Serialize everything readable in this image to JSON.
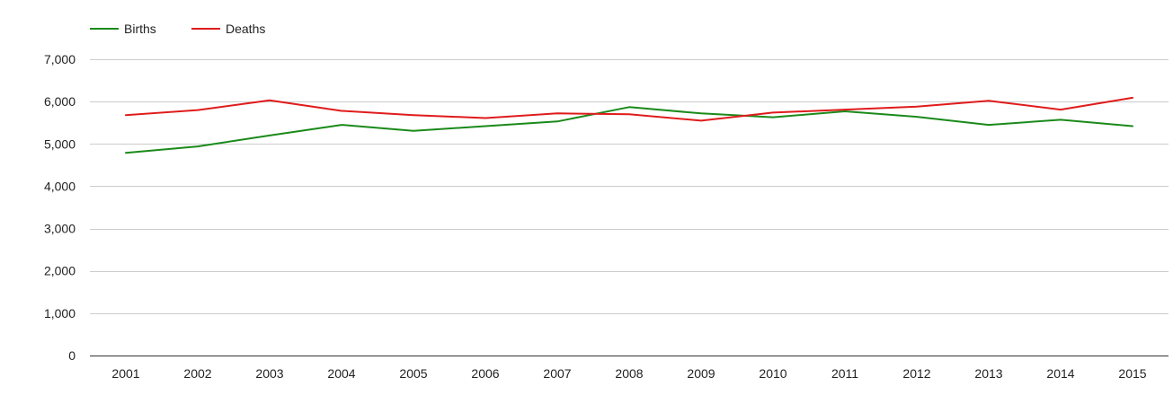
{
  "chart_data": {
    "type": "line",
    "categories": [
      "2001",
      "2002",
      "2003",
      "2004",
      "2005",
      "2006",
      "2007",
      "2008",
      "2009",
      "2010",
      "2011",
      "2012",
      "2013",
      "2014",
      "2015"
    ],
    "series": [
      {
        "name": "Births",
        "color": "#1a8a1a",
        "values": [
          4790,
          4940,
          5200,
          5450,
          5310,
          5420,
          5530,
          5870,
          5720,
          5630,
          5770,
          5640,
          5450,
          5570,
          5420
        ]
      },
      {
        "name": "Deaths",
        "color": "#e01b1b",
        "values": [
          5680,
          5800,
          6030,
          5780,
          5680,
          5610,
          5720,
          5700,
          5550,
          5740,
          5810,
          5880,
          6020,
          5810,
          6090
        ]
      }
    ],
    "title": "",
    "xlabel": "",
    "ylabel": "",
    "ylim": [
      0,
      7000
    ],
    "yticks": [
      0,
      1000,
      2000,
      3000,
      4000,
      5000,
      6000,
      7000
    ],
    "ytick_labels": [
      "0",
      "1,000",
      "2,000",
      "3,000",
      "4,000",
      "5,000",
      "6,000",
      "7,000"
    ],
    "grid": true,
    "legend": "top-left"
  }
}
